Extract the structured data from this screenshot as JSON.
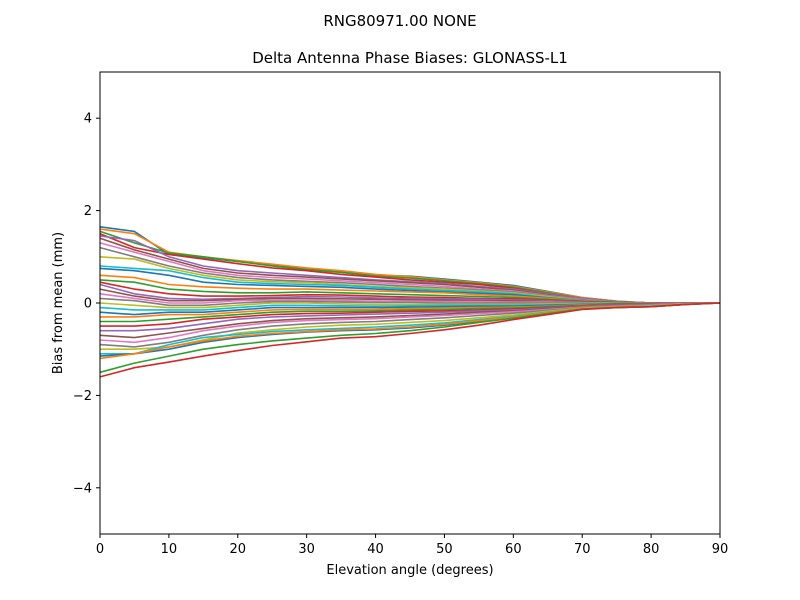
{
  "figure": {
    "suptitle": "RNG80971.00      NONE"
  },
  "chart_data": {
    "type": "line",
    "title": "Delta Antenna Phase Biases: GLONASS-L1",
    "xlabel": "Elevation angle (degrees)",
    "ylabel": "Bias from mean (mm)",
    "xlim": [
      0,
      90
    ],
    "ylim": [
      -5,
      5
    ],
    "xticks": [
      0,
      10,
      20,
      30,
      40,
      50,
      60,
      70,
      80,
      90
    ],
    "yticks": [
      -4,
      -2,
      0,
      2,
      4
    ],
    "ytick_labels": [
      "−4",
      "−2",
      "0",
      "2",
      "4"
    ],
    "x": [
      0,
      5,
      10,
      15,
      20,
      25,
      30,
      35,
      40,
      45,
      50,
      55,
      60,
      65,
      70,
      75,
      80,
      85,
      90
    ],
    "grid": false,
    "legend": "none",
    "colors": [
      "#1f77b4",
      "#ff7f0e",
      "#2ca02c",
      "#d62728",
      "#9467bd",
      "#8c564b",
      "#e377c2",
      "#7f7f7f",
      "#bcbd22",
      "#17becf"
    ],
    "series": [
      {
        "values": [
          1.65,
          1.55,
          1.05,
          0.98,
          0.9,
          0.82,
          0.75,
          0.68,
          0.6,
          0.58,
          0.52,
          0.45,
          0.38,
          0.25,
          0.12,
          0.04,
          0.0,
          0.0,
          0.0
        ]
      },
      {
        "values": [
          1.6,
          1.5,
          1.1,
          1.0,
          0.92,
          0.84,
          0.76,
          0.7,
          0.62,
          0.57,
          0.5,
          0.44,
          0.36,
          0.24,
          0.12,
          0.04,
          0.0,
          0.0,
          0.0
        ]
      },
      {
        "values": [
          1.55,
          1.3,
          1.08,
          1.0,
          0.9,
          0.8,
          0.72,
          0.66,
          0.58,
          0.54,
          0.48,
          0.42,
          0.34,
          0.22,
          0.1,
          0.03,
          0.0,
          0.0,
          0.0
        ]
      },
      {
        "values": [
          1.5,
          1.2,
          1.05,
          0.95,
          0.85,
          0.76,
          0.7,
          0.62,
          0.56,
          0.5,
          0.45,
          0.4,
          0.32,
          0.2,
          0.1,
          0.03,
          0.0,
          0.0,
          0.0
        ]
      },
      {
        "values": [
          1.45,
          1.35,
          1.0,
          0.8,
          0.7,
          0.65,
          0.6,
          0.55,
          0.5,
          0.46,
          0.42,
          0.36,
          0.3,
          0.2,
          0.1,
          0.03,
          0.0,
          0.0,
          0.0
        ]
      },
      {
        "values": [
          1.4,
          1.15,
          0.95,
          0.75,
          0.65,
          0.6,
          0.56,
          0.52,
          0.48,
          0.44,
          0.4,
          0.34,
          0.28,
          0.18,
          0.08,
          0.02,
          0.0,
          0.0,
          0.0
        ]
      },
      {
        "values": [
          1.3,
          1.1,
          0.9,
          0.7,
          0.6,
          0.55,
          0.52,
          0.48,
          0.44,
          0.4,
          0.36,
          0.3,
          0.26,
          0.16,
          0.08,
          0.02,
          0.0,
          0.0,
          0.0
        ]
      },
      {
        "values": [
          1.2,
          1.0,
          0.8,
          0.65,
          0.55,
          0.5,
          0.47,
          0.44,
          0.4,
          0.36,
          0.32,
          0.28,
          0.24,
          0.15,
          0.07,
          0.02,
          0.0,
          0.0,
          0.0
        ]
      },
      {
        "values": [
          1.0,
          0.95,
          0.75,
          0.6,
          0.5,
          0.46,
          0.44,
          0.4,
          0.36,
          0.33,
          0.3,
          0.26,
          0.22,
          0.14,
          0.06,
          0.02,
          0.0,
          0.0,
          0.0
        ]
      },
      {
        "values": [
          0.8,
          0.75,
          0.7,
          0.55,
          0.45,
          0.42,
          0.4,
          0.38,
          0.34,
          0.3,
          0.27,
          0.24,
          0.2,
          0.12,
          0.06,
          0.02,
          0.0,
          0.0,
          0.0
        ]
      },
      {
        "values": [
          0.75,
          0.7,
          0.6,
          0.45,
          0.4,
          0.38,
          0.36,
          0.34,
          0.3,
          0.27,
          0.24,
          0.21,
          0.18,
          0.11,
          0.05,
          0.01,
          0.0,
          0.0,
          0.0
        ]
      },
      {
        "values": [
          0.6,
          0.55,
          0.4,
          0.35,
          0.32,
          0.3,
          0.3,
          0.28,
          0.26,
          0.24,
          0.22,
          0.18,
          0.15,
          0.1,
          0.05,
          0.01,
          0.0,
          0.0,
          0.0
        ]
      },
      {
        "values": [
          0.5,
          0.45,
          0.3,
          0.25,
          0.22,
          0.22,
          0.24,
          0.22,
          0.2,
          0.18,
          0.16,
          0.14,
          0.12,
          0.08,
          0.04,
          0.01,
          0.0,
          0.0,
          0.0
        ]
      },
      {
        "values": [
          0.45,
          0.3,
          0.2,
          0.15,
          0.15,
          0.16,
          0.18,
          0.17,
          0.15,
          0.13,
          0.12,
          0.1,
          0.09,
          0.06,
          0.03,
          0.01,
          0.0,
          0.0,
          0.0
        ]
      },
      {
        "values": [
          0.4,
          0.2,
          0.1,
          0.08,
          0.1,
          0.12,
          0.14,
          0.13,
          0.11,
          0.1,
          0.09,
          0.08,
          0.07,
          0.05,
          0.02,
          0.0,
          0.0,
          0.0,
          0.0
        ]
      },
      {
        "values": [
          0.3,
          0.15,
          0.05,
          0.05,
          0.08,
          0.1,
          0.1,
          0.09,
          0.08,
          0.07,
          0.06,
          0.05,
          0.05,
          0.03,
          0.02,
          0.0,
          0.0,
          0.0,
          0.0
        ]
      },
      {
        "values": [
          0.2,
          0.1,
          0.0,
          0.0,
          0.05,
          0.06,
          0.06,
          0.05,
          0.04,
          0.03,
          0.03,
          0.03,
          0.02,
          0.02,
          0.01,
          0.0,
          0.0,
          0.0,
          0.0
        ]
      },
      {
        "values": [
          0.1,
          0.05,
          -0.05,
          -0.05,
          0.0,
          0.03,
          0.03,
          0.02,
          0.01,
          0.01,
          0.0,
          0.0,
          0.0,
          0.0,
          0.0,
          0.0,
          0.0,
          0.0,
          0.0
        ]
      },
      {
        "values": [
          0.0,
          -0.05,
          -0.1,
          -0.1,
          -0.05,
          0.0,
          0.0,
          -0.02,
          -0.03,
          -0.03,
          -0.03,
          -0.03,
          -0.03,
          -0.02,
          -0.01,
          0.0,
          0.0,
          0.0,
          0.0
        ]
      },
      {
        "values": [
          -0.1,
          -0.15,
          -0.15,
          -0.15,
          -0.1,
          -0.05,
          -0.05,
          -0.06,
          -0.07,
          -0.06,
          -0.05,
          -0.05,
          -0.05,
          -0.04,
          -0.02,
          -0.01,
          0.0,
          0.0,
          0.0
        ]
      },
      {
        "values": [
          -0.2,
          -0.25,
          -0.2,
          -0.2,
          -0.15,
          -0.1,
          -0.1,
          -0.1,
          -0.1,
          -0.09,
          -0.08,
          -0.07,
          -0.07,
          -0.05,
          -0.03,
          -0.01,
          0.0,
          0.0,
          0.0
        ]
      },
      {
        "values": [
          -0.3,
          -0.3,
          -0.25,
          -0.25,
          -0.2,
          -0.15,
          -0.14,
          -0.14,
          -0.14,
          -0.12,
          -0.11,
          -0.1,
          -0.09,
          -0.07,
          -0.04,
          -0.02,
          0.0,
          0.0,
          0.0
        ]
      },
      {
        "values": [
          -0.4,
          -0.4,
          -0.35,
          -0.3,
          -0.25,
          -0.2,
          -0.18,
          -0.18,
          -0.17,
          -0.15,
          -0.14,
          -0.12,
          -0.11,
          -0.08,
          -0.05,
          -0.02,
          -0.01,
          0.0,
          0.0
        ]
      },
      {
        "values": [
          -0.5,
          -0.5,
          -0.45,
          -0.35,
          -0.3,
          -0.25,
          -0.23,
          -0.22,
          -0.2,
          -0.18,
          -0.17,
          -0.15,
          -0.13,
          -0.1,
          -0.06,
          -0.03,
          -0.01,
          0.0,
          0.0
        ]
      },
      {
        "values": [
          -0.6,
          -0.6,
          -0.55,
          -0.45,
          -0.35,
          -0.3,
          -0.28,
          -0.26,
          -0.24,
          -0.22,
          -0.2,
          -0.17,
          -0.15,
          -0.11,
          -0.07,
          -0.04,
          -0.02,
          0.0,
          0.0
        ]
      },
      {
        "values": [
          -0.7,
          -0.75,
          -0.65,
          -0.55,
          -0.45,
          -0.38,
          -0.34,
          -0.32,
          -0.3,
          -0.27,
          -0.24,
          -0.2,
          -0.17,
          -0.12,
          -0.08,
          -0.05,
          -0.03,
          -0.01,
          0.0
        ]
      },
      {
        "values": [
          -0.8,
          -0.85,
          -0.75,
          -0.6,
          -0.5,
          -0.42,
          -0.38,
          -0.36,
          -0.34,
          -0.3,
          -0.27,
          -0.23,
          -0.19,
          -0.14,
          -0.09,
          -0.06,
          -0.04,
          -0.01,
          0.0
        ]
      },
      {
        "values": [
          -0.9,
          -0.95,
          -0.85,
          -0.7,
          -0.58,
          -0.5,
          -0.45,
          -0.42,
          -0.4,
          -0.36,
          -0.32,
          -0.27,
          -0.22,
          -0.16,
          -0.1,
          -0.07,
          -0.05,
          -0.02,
          0.0
        ]
      },
      {
        "values": [
          -1.0,
          -1.0,
          -0.95,
          -0.8,
          -0.65,
          -0.58,
          -0.52,
          -0.48,
          -0.46,
          -0.42,
          -0.38,
          -0.32,
          -0.26,
          -0.18,
          -0.11,
          -0.08,
          -0.06,
          -0.02,
          0.0
        ]
      },
      {
        "values": [
          -1.1,
          -1.1,
          -0.9,
          -0.75,
          -0.68,
          -0.62,
          -0.58,
          -0.55,
          -0.52,
          -0.48,
          -0.43,
          -0.36,
          -0.29,
          -0.2,
          -0.12,
          -0.09,
          -0.07,
          -0.03,
          0.0
        ]
      },
      {
        "values": [
          -1.15,
          -1.1,
          -1.0,
          -0.85,
          -0.75,
          -0.68,
          -0.63,
          -0.6,
          -0.58,
          -0.54,
          -0.48,
          -0.4,
          -0.32,
          -0.22,
          -0.13,
          -0.1,
          -0.08,
          -0.03,
          0.0
        ]
      },
      {
        "values": [
          -1.2,
          -1.1,
          -0.95,
          -0.82,
          -0.72,
          -0.66,
          -0.62,
          -0.58,
          -0.56,
          -0.52,
          -0.46,
          -0.38,
          -0.31,
          -0.21,
          -0.12,
          -0.09,
          -0.08,
          -0.03,
          0.0
        ]
      },
      {
        "values": [
          -1.5,
          -1.3,
          -1.15,
          -1.0,
          -0.9,
          -0.82,
          -0.76,
          -0.7,
          -0.66,
          -0.6,
          -0.52,
          -0.42,
          -0.33,
          -0.23,
          -0.13,
          -0.1,
          -0.08,
          -0.03,
          0.0
        ]
      },
      {
        "values": [
          -1.6,
          -1.4,
          -1.28,
          -1.15,
          -1.03,
          -0.92,
          -0.84,
          -0.76,
          -0.73,
          -0.66,
          -0.58,
          -0.48,
          -0.36,
          -0.25,
          -0.14,
          -0.1,
          -0.08,
          -0.03,
          0.0
        ]
      }
    ]
  }
}
